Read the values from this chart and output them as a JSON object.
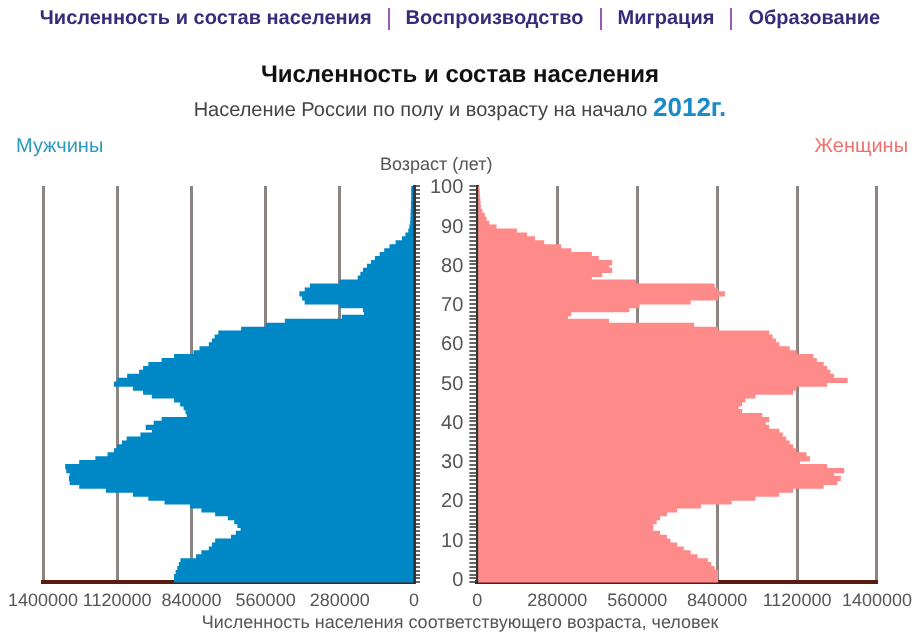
{
  "chart_data": [
    {
      "type": "bar",
      "orientation": "horizontal",
      "title": "Численность и состав населения",
      "subtitle": "Население России по полу и возрасту на начало 2012г.",
      "xlabel": "Численность населения соответствующего возраста, человек",
      "annotations": [
        "Численность и состав населения",
        "Воспроизводство",
        "Миграция",
        "Образование"
      ],
      "categories": [
        "100",
        null,
        null,
        null,
        null,
        null,
        null,
        null,
        null,
        null,
        "90",
        null,
        null,
        null,
        null,
        null,
        null,
        null,
        null,
        null,
        "80",
        null,
        null,
        null,
        null,
        null,
        null,
        null,
        null,
        null,
        "70",
        null,
        null,
        null,
        null,
        null,
        null,
        null,
        null,
        null,
        "60",
        null,
        null,
        null,
        null,
        null,
        null,
        null,
        null,
        null,
        "50",
        null,
        null,
        null,
        null,
        null,
        null,
        null,
        null,
        null,
        "40",
        null,
        null,
        null,
        null,
        null,
        null,
        null,
        null,
        null,
        "30",
        null,
        null,
        null,
        null,
        null,
        null,
        null,
        null,
        null,
        "20",
        null,
        null,
        null,
        null,
        null,
        null,
        null,
        null,
        null,
        "10",
        null,
        null,
        null,
        null,
        null,
        null,
        null,
        null,
        null,
        "0"
      ],
      "series": [
        {
          "name": "Мужчины",
          "color": "#0088c6",
          "values": [
            8000,
            8000,
            8000,
            8000,
            9000,
            9000,
            10000,
            10000,
            11000,
            12000,
            15000,
            19000,
            30000,
            43000,
            67000,
            90000,
            110000,
            127000,
            145000,
            160000,
            175000,
            190000,
            200000,
            210000,
            280000,
            390000,
            410000,
            430000,
            420000,
            410000,
            280000,
            190000,
            186000,
            270000,
            485000,
            557000,
            650000,
            736000,
            750000,
            760000,
            772000,
            807000,
            830000,
            903000,
            950000,
            1000000,
            1020000,
            1035000,
            1080000,
            1118000,
            1130000,
            1058000,
            1020000,
            987000,
            903000,
            880000,
            867000,
            860000,
            855000,
            950000,
            980000,
            1010000,
            987000,
            1030000,
            1082000,
            1100000,
            1118000,
            1130000,
            1154000,
            1200000,
            1261000,
            1314000,
            1310000,
            1297000,
            1300000,
            1297000,
            1261000,
            1160000,
            1058000,
            1000000,
            939000,
            843000,
            800000,
            748000,
            700000,
            676000,
            664000,
            652000,
            670000,
            688000,
            748000,
            760000,
            772000,
            800000,
            820000,
            879000,
            885000,
            891000,
            897000,
            903000,
            903000
          ]
        }
      ],
      "xlim": [
        1400000,
        0
      ],
      "xticks": [
        1400000,
        1120000,
        840000,
        560000,
        280000,
        0
      ],
      "grid": "x",
      "tick_labels": "x"
    },
    {
      "type": "bar",
      "orientation": "horizontal",
      "ylabel": "Возраст (лет)",
      "categories": [
        "100",
        null,
        null,
        null,
        null,
        null,
        null,
        null,
        null,
        null,
        "90",
        null,
        null,
        null,
        null,
        null,
        null,
        null,
        null,
        null,
        "80",
        null,
        null,
        null,
        null,
        null,
        null,
        null,
        null,
        null,
        "70",
        null,
        null,
        null,
        null,
        null,
        null,
        null,
        null,
        null,
        "60",
        null,
        null,
        null,
        null,
        null,
        null,
        null,
        null,
        null,
        "50",
        null,
        null,
        null,
        null,
        null,
        null,
        null,
        null,
        null,
        "40",
        null,
        null,
        null,
        null,
        null,
        null,
        null,
        null,
        null,
        "30",
        null,
        null,
        null,
        null,
        null,
        null,
        null,
        null,
        null,
        "20",
        null,
        null,
        null,
        null,
        null,
        null,
        null,
        null,
        null,
        "10",
        null,
        null,
        null,
        null,
        null,
        null,
        null,
        null,
        null,
        "0"
      ],
      "series": [
        {
          "name": "Женщины",
          "color": "#ff8a8a",
          "values": [
            5000,
            6000,
            7000,
            8000,
            9000,
            10000,
            15000,
            24000,
            30000,
            40000,
            65000,
            136000,
            172000,
            200000,
            232000,
            291000,
            327000,
            399000,
            423000,
            470000,
            459000,
            470000,
            435000,
            399000,
            554000,
            829000,
            841000,
            865000,
            841000,
            745000,
            566000,
            530000,
            327000,
            315000,
            459000,
            757000,
            841000,
            1020000,
            1032000,
            1044000,
            1056000,
            1092000,
            1116000,
            1175000,
            1187000,
            1211000,
            1223000,
            1235000,
            1247000,
            1295000,
            1223000,
            1116000,
            1104000,
            972000,
            937000,
            925000,
            913000,
            925000,
            996000,
            1020000,
            1008000,
            1020000,
            1056000,
            1068000,
            1080000,
            1092000,
            1104000,
            1116000,
            1151000,
            1163000,
            1128000,
            1223000,
            1283000,
            1247000,
            1271000,
            1259000,
            1211000,
            1104000,
            1056000,
            972000,
            889000,
            781000,
            698000,
            662000,
            638000,
            626000,
            614000,
            614000,
            638000,
            662000,
            674000,
            698000,
            721000,
            745000,
            769000,
            805000,
            817000,
            829000,
            841000,
            841000,
            841000
          ]
        }
      ],
      "xlim": [
        0,
        1400000
      ],
      "xticks": [
        0,
        280000,
        560000,
        840000,
        1120000,
        1400000
      ],
      "grid": "x"
    }
  ]
}
